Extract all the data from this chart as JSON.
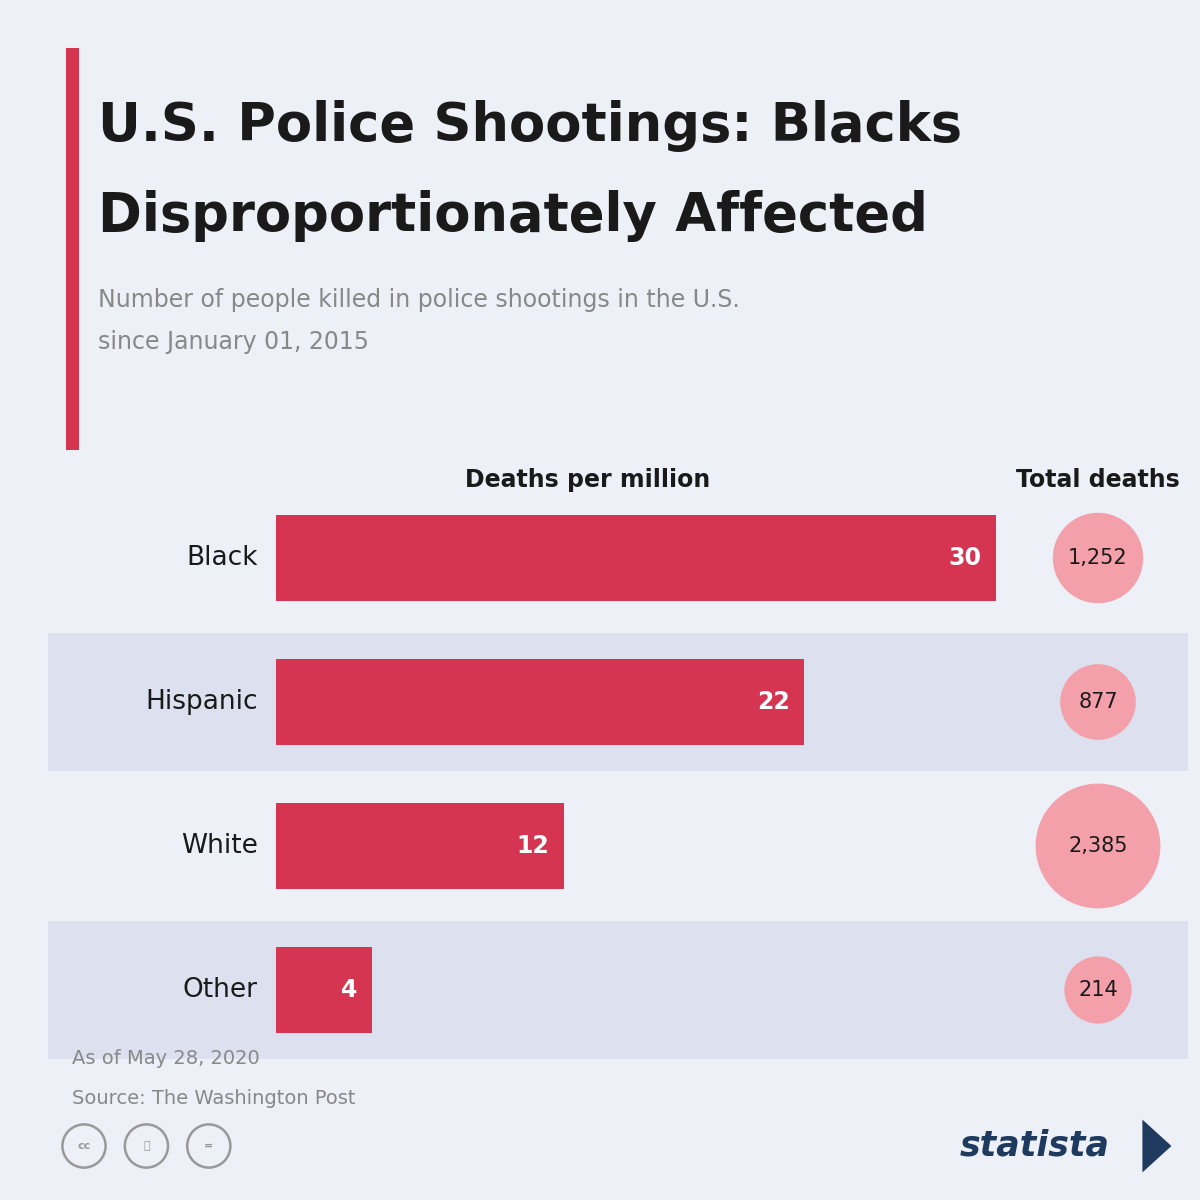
{
  "title_line1": "U.S. Police Shootings: Blacks",
  "title_line2": "Disproportionately Affected",
  "subtitle_line1": "Number of people killed in police shootings in the U.S.",
  "subtitle_line2": "since January 01, 2015",
  "col1_header": "Deaths per million",
  "col2_header": "Total deaths",
  "categories": [
    "Black",
    "Hispanic",
    "White",
    "Other"
  ],
  "deaths_per_million": [
    30,
    22,
    12,
    4
  ],
  "total_deaths": [
    1252,
    877,
    2385,
    214
  ],
  "total_deaths_labels": [
    "1,252",
    "877",
    "2,385",
    "214"
  ],
  "bar_color": "#d63551",
  "bg_color": "#edf0f7",
  "row_bg_light": "#edf0f7",
  "row_bg_dark": "#dde1ef",
  "row_bg_colors": [
    "#edf0f7",
    "#dde1ef",
    "#edf0f7",
    "#dde1ef"
  ],
  "circle_color": "#f4a0aa",
  "title_color": "#1a1a1a",
  "subtitle_color": "#888888",
  "label_color": "#1a1a1a",
  "footer_color": "#888888",
  "footer_line1": "As of May 28, 2020",
  "footer_line2": "Source: The Washington Post",
  "accent_color": "#d63551",
  "max_bar_value": 30,
  "statista_color": "#1e3a5f"
}
